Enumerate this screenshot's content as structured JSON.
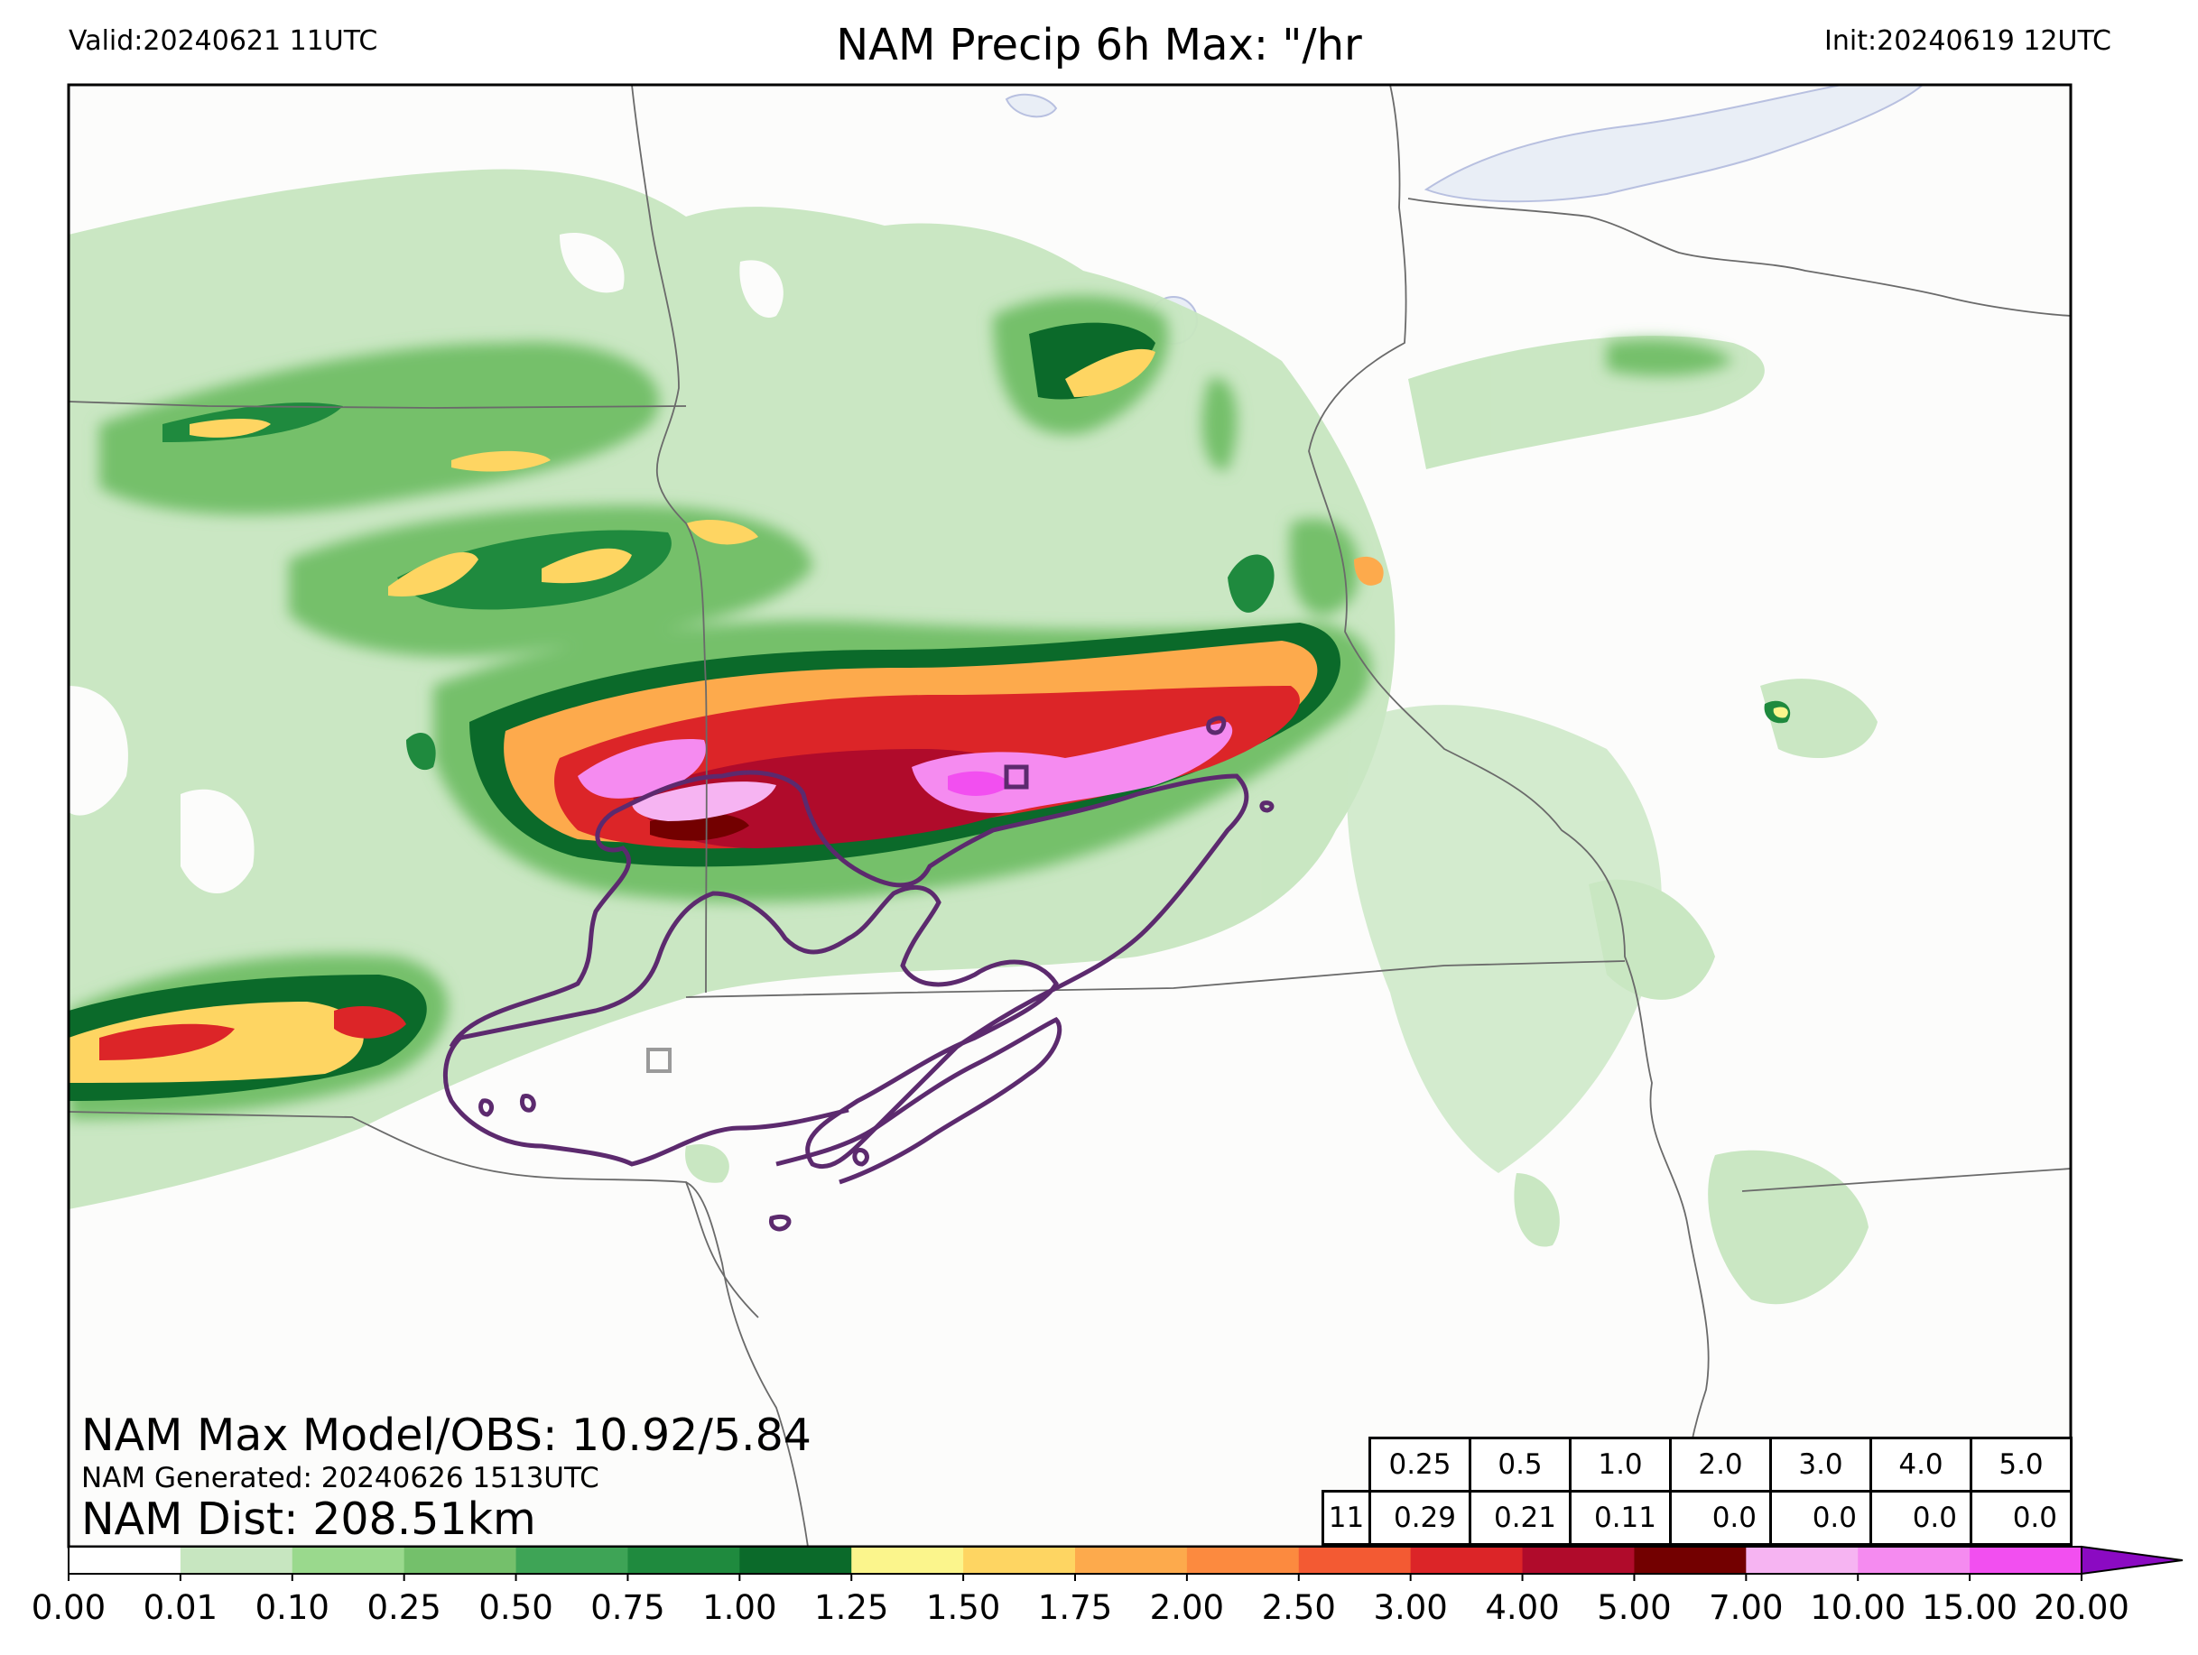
{
  "header": {
    "valid": "Valid:20240621 11UTC",
    "title": "NAM Precip 6h Max: \"/hr",
    "init": "Init:20240619 12UTC"
  },
  "annotations": {
    "max_model_obs": "NAM Max Model/OBS: 10.92/5.84",
    "generated": "NAM Generated: 20240626 1513UTC",
    "dist": "NAM Dist: 208.51km"
  },
  "stats_table": {
    "thresholds": [
      "0.25",
      "0.5",
      "1.0",
      "2.0",
      "3.0",
      "4.0",
      "5.0"
    ],
    "row_label": "11",
    "values": [
      "0.29",
      "0.21",
      "0.11",
      "0.0",
      "0.0",
      "0.0",
      "0.0"
    ]
  },
  "colorbar": {
    "ticks": [
      "0.00",
      "0.01",
      "0.10",
      "0.25",
      "0.50",
      "0.75",
      "1.00",
      "1.25",
      "1.50",
      "1.75",
      "2.00",
      "2.50",
      "3.00",
      "4.00",
      "5.00",
      "7.00",
      "10.00",
      "15.00",
      "20.00"
    ],
    "colors": [
      "#ffffff",
      "#c7e6c0",
      "#9ad98d",
      "#74c06b",
      "#3ea456",
      "#1f8a3e",
      "#0b6a2a",
      "#fbf58c",
      "#fed562",
      "#fdaa4c",
      "#fc8a3f",
      "#f35a33",
      "#dc2528",
      "#b00b2b",
      "#730000",
      "#f6b4f2",
      "#f58bf0",
      "#f24ff0",
      "#e419f4",
      "#a30ad9"
    ]
  },
  "colors": {
    "map_background": "#fcfcfb",
    "water": "#e9eef6",
    "obs_contour": "#5c2a6e",
    "borders": "#6a6a6a"
  }
}
